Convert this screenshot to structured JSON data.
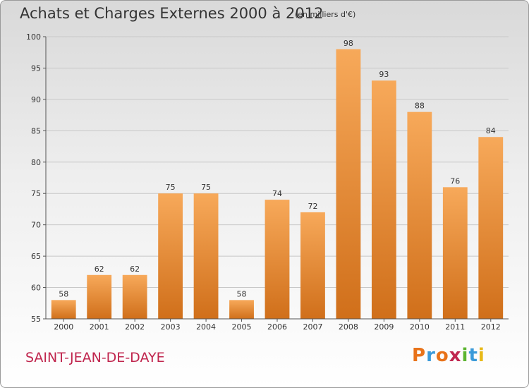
{
  "title": "Achats et Charges Externes 2000 à 2012",
  "subtitle": "(en milliers d'€)",
  "commune": "SAINT-JEAN-DE-DAYE",
  "logo": {
    "letters": [
      "P",
      "r",
      "o",
      "x",
      "i",
      "t",
      "i"
    ],
    "colors": [
      "#e8731a",
      "#3a9ad9",
      "#e8731a",
      "#c0264e",
      "#5cb531",
      "#3a9ad9",
      "#e8b917"
    ]
  },
  "colors": {
    "bar_light": "#f7a95a",
    "bar_dark": "#d06f1a"
  },
  "chart_data": {
    "type": "bar",
    "categories": [
      "2000",
      "2001",
      "2002",
      "2003",
      "2004",
      "2005",
      "2006",
      "2007",
      "2008",
      "2009",
      "2010",
      "2011",
      "2012"
    ],
    "values": [
      58,
      62,
      62,
      75,
      75,
      58,
      74,
      72,
      98,
      93,
      88,
      76,
      84
    ],
    "ylim": [
      55,
      100
    ],
    "yticks": [
      55,
      60,
      65,
      70,
      75,
      80,
      85,
      90,
      95,
      100
    ],
    "grid": true
  }
}
